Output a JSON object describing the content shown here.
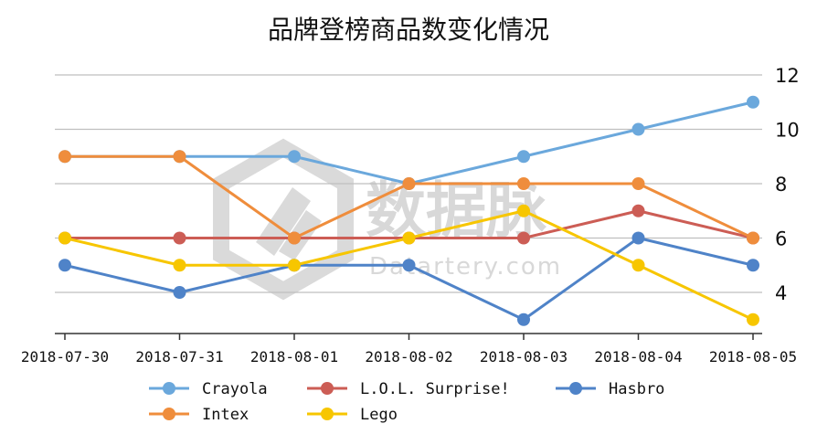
{
  "chart_data": {
    "type": "line",
    "title": "品牌登榜商品数变化情况",
    "xlabel": "",
    "ylabel": "",
    "categories": [
      "2018-07-30",
      "2018-07-31",
      "2018-08-01",
      "2018-08-02",
      "2018-08-03",
      "2018-08-04",
      "2018-08-05"
    ],
    "ylim": [
      2.5,
      12
    ],
    "yticks": [
      4,
      6,
      8,
      10,
      12
    ],
    "y_axis_side": "right",
    "grid": true,
    "legend_position": "bottom",
    "series": [
      {
        "name": "Crayola",
        "color": "#6ba8dc",
        "values": [
          9,
          9,
          9,
          8,
          9,
          10,
          11
        ]
      },
      {
        "name": "L.O.L. Surprise!",
        "color": "#cc5d55",
        "values": [
          6,
          6,
          6,
          6,
          6,
          7,
          6
        ]
      },
      {
        "name": "Hasbro",
        "color": "#4f83c8",
        "values": [
          5,
          4,
          5,
          5,
          3,
          6,
          5
        ]
      },
      {
        "name": "Intex",
        "color": "#ef8d3c",
        "values": [
          9,
          9,
          6,
          8,
          8,
          8,
          6
        ]
      },
      {
        "name": "Lego",
        "color": "#f7c600",
        "values": [
          6,
          5,
          5,
          6,
          7,
          5,
          3
        ]
      }
    ]
  },
  "watermark": {
    "text": "数据脉",
    "subtext": "Datartery.com"
  }
}
